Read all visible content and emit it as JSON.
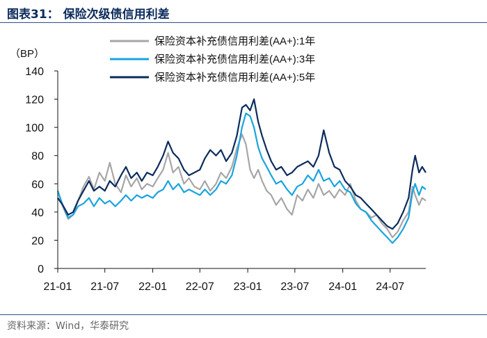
{
  "header": {
    "title": "图表31： 保险次级债信用利差"
  },
  "footer": {
    "source": "资料来源：Wind，华泰研究"
  },
  "colors": {
    "title": "#0b2b5c",
    "rule": "#2b4f86"
  },
  "chart_data": {
    "type": "line",
    "title": "",
    "ylabel": "（BP）",
    "xlabel": "",
    "ylim": [
      0,
      140
    ],
    "yticks": [
      0,
      20,
      40,
      60,
      80,
      100,
      120,
      140
    ],
    "xlim": [
      "2021-01-01",
      "2024-11-15"
    ],
    "xticks": [
      {
        "date": "2021-01-01",
        "label": "21-01"
      },
      {
        "date": "2021-07-01",
        "label": "21-07"
      },
      {
        "date": "2022-01-01",
        "label": "22-01"
      },
      {
        "date": "2022-07-01",
        "label": "22-07"
      },
      {
        "date": "2023-01-01",
        "label": "23-01"
      },
      {
        "date": "2023-07-01",
        "label": "23-07"
      },
      {
        "date": "2024-01-01",
        "label": "24-01"
      },
      {
        "date": "2024-07-01",
        "label": "24-07"
      }
    ],
    "grid": false,
    "legend": "top",
    "series": [
      {
        "name": "保险资本补充债信用利差(AA+):1年",
        "color": "#a6a6a6",
        "points": [
          [
            "2021-01-01",
            55
          ],
          [
            "2021-01-20",
            44
          ],
          [
            "2021-02-10",
            35
          ],
          [
            "2021-03-01",
            38
          ],
          [
            "2021-03-20",
            48
          ],
          [
            "2021-04-10",
            58
          ],
          [
            "2021-05-01",
            65
          ],
          [
            "2021-05-20",
            56
          ],
          [
            "2021-06-10",
            68
          ],
          [
            "2021-07-01",
            62
          ],
          [
            "2021-07-20",
            75
          ],
          [
            "2021-08-10",
            60
          ],
          [
            "2021-09-01",
            54
          ],
          [
            "2021-09-20",
            66
          ],
          [
            "2021-10-10",
            58
          ],
          [
            "2021-11-01",
            64
          ],
          [
            "2021-11-20",
            56
          ],
          [
            "2021-12-10",
            60
          ],
          [
            "2022-01-01",
            58
          ],
          [
            "2022-01-20",
            64
          ],
          [
            "2022-02-10",
            70
          ],
          [
            "2022-03-01",
            82
          ],
          [
            "2022-03-20",
            68
          ],
          [
            "2022-04-10",
            72
          ],
          [
            "2022-05-01",
            60
          ],
          [
            "2022-05-20",
            64
          ],
          [
            "2022-06-10",
            58
          ],
          [
            "2022-07-01",
            56
          ],
          [
            "2022-07-20",
            62
          ],
          [
            "2022-08-10",
            55
          ],
          [
            "2022-09-01",
            60
          ],
          [
            "2022-09-20",
            68
          ],
          [
            "2022-10-10",
            64
          ],
          [
            "2022-11-01",
            72
          ],
          [
            "2022-11-20",
            85
          ],
          [
            "2022-12-10",
            95
          ],
          [
            "2022-12-25",
            88
          ],
          [
            "2023-01-10",
            70
          ],
          [
            "2023-01-25",
            64
          ],
          [
            "2023-02-10",
            70
          ],
          [
            "2023-02-25",
            62
          ],
          [
            "2023-03-15",
            55
          ],
          [
            "2023-04-01",
            52
          ],
          [
            "2023-04-20",
            45
          ],
          [
            "2023-05-10",
            50
          ],
          [
            "2023-06-01",
            42
          ],
          [
            "2023-06-20",
            38
          ],
          [
            "2023-07-10",
            52
          ],
          [
            "2023-07-30",
            48
          ],
          [
            "2023-08-20",
            56
          ],
          [
            "2023-09-10",
            50
          ],
          [
            "2023-09-30",
            60
          ],
          [
            "2023-10-20",
            52
          ],
          [
            "2023-11-10",
            55
          ],
          [
            "2023-11-30",
            50
          ],
          [
            "2023-12-20",
            56
          ],
          [
            "2024-01-10",
            52
          ],
          [
            "2024-01-30",
            60
          ],
          [
            "2024-02-20",
            48
          ],
          [
            "2024-03-10",
            42
          ],
          [
            "2024-03-30",
            40
          ],
          [
            "2024-04-20",
            36
          ],
          [
            "2024-05-10",
            38
          ],
          [
            "2024-05-30",
            32
          ],
          [
            "2024-06-20",
            28
          ],
          [
            "2024-07-10",
            22
          ],
          [
            "2024-07-30",
            26
          ],
          [
            "2024-08-20",
            34
          ],
          [
            "2024-09-10",
            40
          ],
          [
            "2024-09-25",
            58
          ],
          [
            "2024-10-05",
            52
          ],
          [
            "2024-10-20",
            45
          ],
          [
            "2024-11-01",
            50
          ],
          [
            "2024-11-15",
            48
          ]
        ]
      },
      {
        "name": "保险资本补充债信用利差(AA+):3年",
        "color": "#1aa3df",
        "points": [
          [
            "2021-01-01",
            55
          ],
          [
            "2021-01-20",
            45
          ],
          [
            "2021-02-10",
            36
          ],
          [
            "2021-03-01",
            38
          ],
          [
            "2021-03-20",
            44
          ],
          [
            "2021-04-10",
            46
          ],
          [
            "2021-05-01",
            50
          ],
          [
            "2021-05-20",
            44
          ],
          [
            "2021-06-10",
            50
          ],
          [
            "2021-07-01",
            46
          ],
          [
            "2021-07-20",
            48
          ],
          [
            "2021-08-10",
            44
          ],
          [
            "2021-09-01",
            48
          ],
          [
            "2021-09-20",
            52
          ],
          [
            "2021-10-10",
            48
          ],
          [
            "2021-11-01",
            52
          ],
          [
            "2021-11-20",
            50
          ],
          [
            "2021-12-10",
            52
          ],
          [
            "2022-01-01",
            50
          ],
          [
            "2022-01-20",
            54
          ],
          [
            "2022-02-10",
            56
          ],
          [
            "2022-03-01",
            62
          ],
          [
            "2022-03-20",
            56
          ],
          [
            "2022-04-10",
            60
          ],
          [
            "2022-05-01",
            54
          ],
          [
            "2022-05-20",
            56
          ],
          [
            "2022-06-10",
            54
          ],
          [
            "2022-07-01",
            52
          ],
          [
            "2022-07-20",
            56
          ],
          [
            "2022-08-10",
            52
          ],
          [
            "2022-09-01",
            56
          ],
          [
            "2022-09-20",
            62
          ],
          [
            "2022-10-10",
            60
          ],
          [
            "2022-11-01",
            66
          ],
          [
            "2022-11-20",
            80
          ],
          [
            "2022-12-10",
            100
          ],
          [
            "2022-12-25",
            110
          ],
          [
            "2023-01-10",
            108
          ],
          [
            "2023-01-25",
            100
          ],
          [
            "2023-02-10",
            86
          ],
          [
            "2023-02-25",
            78
          ],
          [
            "2023-03-15",
            72
          ],
          [
            "2023-04-01",
            66
          ],
          [
            "2023-04-20",
            60
          ],
          [
            "2023-05-10",
            62
          ],
          [
            "2023-06-01",
            56
          ],
          [
            "2023-06-20",
            52
          ],
          [
            "2023-07-10",
            58
          ],
          [
            "2023-07-30",
            60
          ],
          [
            "2023-08-20",
            66
          ],
          [
            "2023-09-10",
            62
          ],
          [
            "2023-09-30",
            70
          ],
          [
            "2023-10-20",
            62
          ],
          [
            "2023-11-10",
            64
          ],
          [
            "2023-11-30",
            58
          ],
          [
            "2023-12-20",
            62
          ],
          [
            "2024-01-10",
            56
          ],
          [
            "2024-01-30",
            54
          ],
          [
            "2024-02-20",
            46
          ],
          [
            "2024-03-10",
            42
          ],
          [
            "2024-03-30",
            40
          ],
          [
            "2024-04-20",
            34
          ],
          [
            "2024-05-10",
            30
          ],
          [
            "2024-05-30",
            26
          ],
          [
            "2024-06-20",
            22
          ],
          [
            "2024-07-10",
            18
          ],
          [
            "2024-07-30",
            22
          ],
          [
            "2024-08-20",
            28
          ],
          [
            "2024-09-10",
            36
          ],
          [
            "2024-09-25",
            54
          ],
          [
            "2024-10-05",
            60
          ],
          [
            "2024-10-20",
            52
          ],
          [
            "2024-11-01",
            58
          ],
          [
            "2024-11-15",
            56
          ]
        ]
      },
      {
        "name": "保险资本补充债信用利差(AA+):5年",
        "color": "#0b2b5c",
        "points": [
          [
            "2021-01-01",
            50
          ],
          [
            "2021-01-20",
            45
          ],
          [
            "2021-02-10",
            38
          ],
          [
            "2021-03-01",
            40
          ],
          [
            "2021-03-20",
            48
          ],
          [
            "2021-04-10",
            55
          ],
          [
            "2021-05-01",
            62
          ],
          [
            "2021-05-20",
            55
          ],
          [
            "2021-06-10",
            58
          ],
          [
            "2021-07-01",
            55
          ],
          [
            "2021-07-20",
            62
          ],
          [
            "2021-08-10",
            58
          ],
          [
            "2021-09-01",
            66
          ],
          [
            "2021-09-20",
            72
          ],
          [
            "2021-10-10",
            64
          ],
          [
            "2021-11-01",
            68
          ],
          [
            "2021-11-20",
            62
          ],
          [
            "2021-12-10",
            68
          ],
          [
            "2022-01-01",
            66
          ],
          [
            "2022-01-20",
            72
          ],
          [
            "2022-02-10",
            80
          ],
          [
            "2022-03-01",
            90
          ],
          [
            "2022-03-20",
            82
          ],
          [
            "2022-04-10",
            78
          ],
          [
            "2022-05-01",
            70
          ],
          [
            "2022-05-20",
            66
          ],
          [
            "2022-06-10",
            68
          ],
          [
            "2022-07-01",
            70
          ],
          [
            "2022-07-20",
            78
          ],
          [
            "2022-08-10",
            84
          ],
          [
            "2022-09-01",
            80
          ],
          [
            "2022-09-20",
            84
          ],
          [
            "2022-10-10",
            76
          ],
          [
            "2022-11-01",
            82
          ],
          [
            "2022-11-20",
            94
          ],
          [
            "2022-12-10",
            114
          ],
          [
            "2022-12-25",
            116
          ],
          [
            "2023-01-10",
            112
          ],
          [
            "2023-01-25",
            120
          ],
          [
            "2023-02-10",
            104
          ],
          [
            "2023-02-25",
            94
          ],
          [
            "2023-03-15",
            84
          ],
          [
            "2023-04-01",
            76
          ],
          [
            "2023-04-20",
            70
          ],
          [
            "2023-05-10",
            72
          ],
          [
            "2023-06-01",
            66
          ],
          [
            "2023-06-20",
            68
          ],
          [
            "2023-07-10",
            72
          ],
          [
            "2023-07-30",
            74
          ],
          [
            "2023-08-20",
            76
          ],
          [
            "2023-09-10",
            72
          ],
          [
            "2023-09-30",
            80
          ],
          [
            "2023-10-20",
            98
          ],
          [
            "2023-11-10",
            82
          ],
          [
            "2023-11-30",
            72
          ],
          [
            "2023-12-20",
            70
          ],
          [
            "2024-01-10",
            62
          ],
          [
            "2024-01-30",
            58
          ],
          [
            "2024-02-20",
            52
          ],
          [
            "2024-03-10",
            50
          ],
          [
            "2024-03-30",
            46
          ],
          [
            "2024-04-20",
            42
          ],
          [
            "2024-05-10",
            38
          ],
          [
            "2024-05-30",
            34
          ],
          [
            "2024-06-20",
            30
          ],
          [
            "2024-07-10",
            28
          ],
          [
            "2024-07-30",
            32
          ],
          [
            "2024-08-20",
            40
          ],
          [
            "2024-09-10",
            50
          ],
          [
            "2024-09-25",
            70
          ],
          [
            "2024-10-05",
            80
          ],
          [
            "2024-10-20",
            68
          ],
          [
            "2024-11-01",
            72
          ],
          [
            "2024-11-15",
            68
          ]
        ]
      }
    ]
  }
}
